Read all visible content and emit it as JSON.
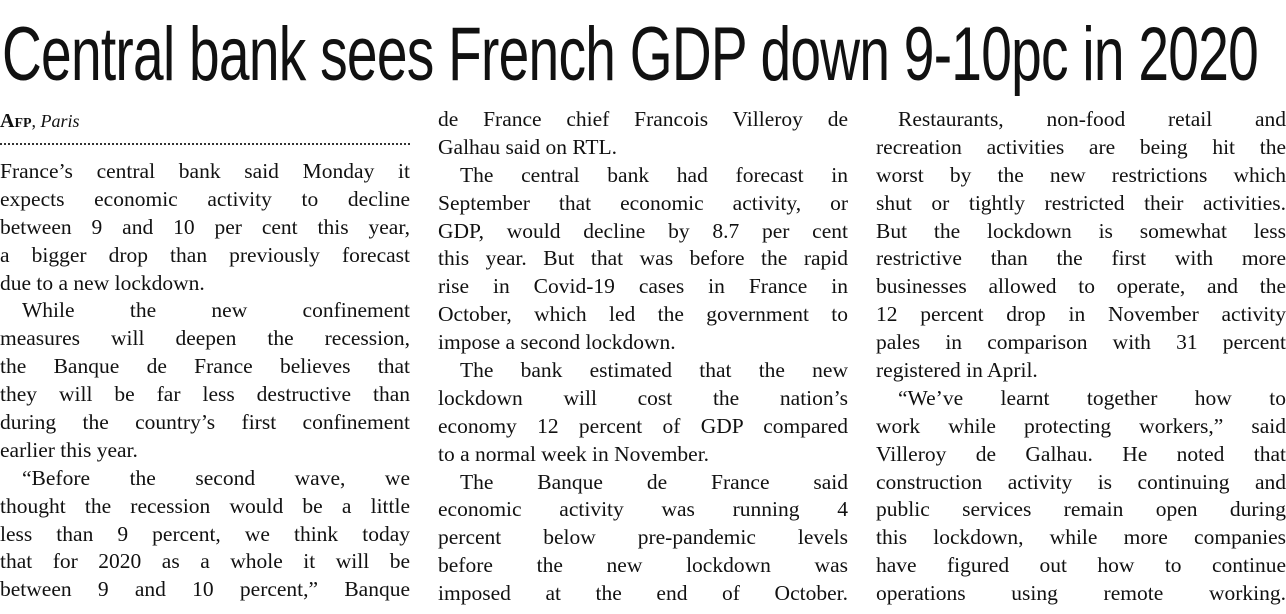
{
  "headline": "Central bank sees French GDP down 9-10pc in 2020",
  "byline": {
    "agency": "Afp",
    "place": "Paris"
  },
  "columns": [
    [
      {
        "indent": false,
        "end": true,
        "lines": [
          "France’s central bank said Monday it",
          "expects economic activity to decline",
          "between 9 and 10 per cent this year,",
          "a bigger drop than previously forecast",
          "due to a new lockdown."
        ]
      },
      {
        "indent": true,
        "end": true,
        "lines": [
          "While the new confinement",
          "measures will deepen the recession,",
          "the Banque de France believes that",
          "they will be far less destructive than",
          "during the country’s first confinement",
          "earlier this year."
        ]
      },
      {
        "indent": true,
        "end": false,
        "lines": [
          "“Before the second wave, we",
          "thought the recession would be a little",
          "less than 9 percent, we think today",
          "that for 2020 as a whole it will be",
          "between 9 and 10 percent,” Banque"
        ]
      }
    ],
    [
      {
        "indent": false,
        "end": true,
        "lines": [
          "de France chief Francois Villeroy de",
          "Galhau said on RTL."
        ]
      },
      {
        "indent": true,
        "end": true,
        "lines": [
          "The central bank had forecast in",
          "September that economic activity, or",
          "GDP, would decline by 8.7 per cent",
          "this year. But that was before the rapid",
          "rise in Covid-19 cases in France in",
          "October, which led the government to",
          "impose a second lockdown."
        ]
      },
      {
        "indent": true,
        "end": true,
        "lines": [
          "The bank estimated that the new",
          "lockdown will cost the nation’s",
          "economy 12 percent of GDP compared",
          "to a normal week in November."
        ]
      },
      {
        "indent": true,
        "end": false,
        "lines": [
          "The Banque de France said",
          "economic activity was running 4",
          "percent below pre-pandemic levels",
          "before the new lockdown was",
          "imposed at the end of October."
        ]
      }
    ],
    [
      {
        "indent": true,
        "end": true,
        "lines": [
          "Restaurants, non-food retail and",
          "recreation activities are being hit the",
          "worst by the new restrictions which",
          "shut or tightly restricted their activities.",
          "But the lockdown is somewhat less",
          "restrictive than the first with more",
          "businesses allowed to operate, and the",
          "12 percent drop in November activity",
          "pales in comparison with 31 percent",
          "registered in April."
        ]
      },
      {
        "indent": true,
        "end": false,
        "lines": [
          "“We’ve learnt together how to",
          "work while protecting workers,” said",
          "Villeroy de Galhau. He noted that",
          "construction activity is continuing and",
          "public services remain open during",
          "this lockdown, while more companies",
          "have figured out how to continue",
          "operations using remote working."
        ]
      }
    ]
  ]
}
